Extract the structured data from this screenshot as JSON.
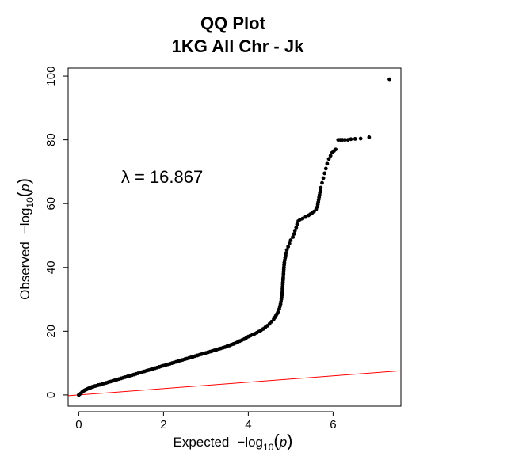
{
  "chart_data": {
    "type": "scatter",
    "title": "QQ Plot",
    "subtitle": "1KG All Chr - Jk",
    "xlabel": {
      "prefix": "Expected",
      "log_term": "−log",
      "base": "10",
      "arg_open": "(",
      "arg": "p",
      "arg_close": ")"
    },
    "ylabel": {
      "prefix": "Observed",
      "log_term": "−log",
      "base": "10",
      "arg_open": "(",
      "arg": "p",
      "arg_close": ")"
    },
    "xlim": [
      -0.25,
      7.6
    ],
    "ylim": [
      -3.5,
      102.5
    ],
    "x_ticks": [
      0,
      2,
      4,
      6
    ],
    "x_tick_labels": [
      "0",
      "2",
      "4",
      "6"
    ],
    "y_ticks": [
      0,
      20,
      40,
      60,
      80,
      100
    ],
    "y_tick_labels": [
      "0",
      "20",
      "40",
      "60",
      "80",
      "100"
    ],
    "annotation": "λ = 16.867",
    "annotation_at": [
      1.0,
      66.5
    ],
    "point_color": "#000000",
    "reference_line": {
      "color": "#ff0000",
      "x": [
        -0.25,
        7.6
      ],
      "y": [
        -0.25,
        7.6
      ]
    },
    "grid": false,
    "points": [
      [
        0.0,
        0.0
      ],
      [
        0.02,
        0.2
      ],
      [
        0.05,
        0.5
      ],
      [
        0.08,
        0.9
      ],
      [
        0.1,
        1.1
      ],
      [
        0.13,
        1.4
      ],
      [
        0.16,
        1.6
      ],
      [
        0.19,
        1.8
      ],
      [
        0.22,
        2.0
      ],
      [
        0.25,
        2.2
      ],
      [
        0.28,
        2.3
      ],
      [
        0.31,
        2.5
      ],
      [
        0.34,
        2.6
      ],
      [
        0.38,
        2.8
      ],
      [
        0.42,
        2.9
      ],
      [
        0.46,
        3.1
      ],
      [
        0.5,
        3.2
      ],
      [
        0.55,
        3.4
      ],
      [
        0.6,
        3.6
      ],
      [
        0.65,
        3.8
      ],
      [
        0.7,
        4.0
      ],
      [
        0.75,
        4.2
      ],
      [
        0.8,
        4.4
      ],
      [
        0.85,
        4.6
      ],
      [
        0.9,
        4.8
      ],
      [
        0.95,
        5.0
      ],
      [
        1.0,
        5.2
      ],
      [
        1.05,
        5.4
      ],
      [
        1.1,
        5.6
      ],
      [
        1.15,
        5.8
      ],
      [
        1.2,
        6.0
      ],
      [
        1.25,
        6.2
      ],
      [
        1.3,
        6.4
      ],
      [
        1.35,
        6.6
      ],
      [
        1.4,
        6.8
      ],
      [
        1.45,
        7.0
      ],
      [
        1.5,
        7.2
      ],
      [
        1.55,
        7.4
      ],
      [
        1.6,
        7.6
      ],
      [
        1.65,
        7.8
      ],
      [
        1.7,
        8.0
      ],
      [
        1.75,
        8.2
      ],
      [
        1.8,
        8.4
      ],
      [
        1.85,
        8.6
      ],
      [
        1.9,
        8.8
      ],
      [
        1.95,
        9.0
      ],
      [
        2.0,
        9.2
      ],
      [
        2.05,
        9.4
      ],
      [
        2.1,
        9.6
      ],
      [
        2.15,
        9.8
      ],
      [
        2.2,
        10.0
      ],
      [
        2.25,
        10.2
      ],
      [
        2.3,
        10.4
      ],
      [
        2.35,
        10.6
      ],
      [
        2.4,
        10.8
      ],
      [
        2.45,
        11.0
      ],
      [
        2.5,
        11.2
      ],
      [
        2.55,
        11.4
      ],
      [
        2.6,
        11.6
      ],
      [
        2.65,
        11.8
      ],
      [
        2.7,
        12.0
      ],
      [
        2.75,
        12.2
      ],
      [
        2.8,
        12.4
      ],
      [
        2.85,
        12.6
      ],
      [
        2.9,
        12.8
      ],
      [
        2.95,
        13.0
      ],
      [
        3.0,
        13.2
      ],
      [
        3.05,
        13.4
      ],
      [
        3.1,
        13.6
      ],
      [
        3.15,
        13.8
      ],
      [
        3.2,
        14.0
      ],
      [
        3.25,
        14.2
      ],
      [
        3.3,
        14.4
      ],
      [
        3.35,
        14.6
      ],
      [
        3.4,
        14.8
      ],
      [
        3.45,
        15.0
      ],
      [
        3.5,
        15.3
      ],
      [
        3.55,
        15.5
      ],
      [
        3.6,
        15.8
      ],
      [
        3.65,
        16.0
      ],
      [
        3.7,
        16.3
      ],
      [
        3.75,
        16.6
      ],
      [
        3.8,
        16.9
      ],
      [
        3.85,
        17.2
      ],
      [
        3.9,
        17.5
      ],
      [
        3.95,
        17.9
      ],
      [
        4.0,
        18.3
      ],
      [
        4.05,
        18.6
      ],
      [
        4.1,
        18.9
      ],
      [
        4.15,
        19.2
      ],
      [
        4.2,
        19.5
      ],
      [
        4.25,
        19.9
      ],
      [
        4.3,
        20.3
      ],
      [
        4.35,
        20.7
      ],
      [
        4.4,
        21.2
      ],
      [
        4.45,
        21.7
      ],
      [
        4.5,
        22.3
      ],
      [
        4.55,
        23.0
      ],
      [
        4.6,
        23.8
      ],
      [
        4.65,
        24.8
      ],
      [
        4.7,
        26.0
      ],
      [
        4.73,
        27.0
      ],
      [
        4.76,
        28.5
      ],
      [
        4.78,
        30.0
      ],
      [
        4.8,
        32.0
      ],
      [
        4.81,
        34.0
      ],
      [
        4.82,
        36.0
      ],
      [
        4.83,
        38.0
      ],
      [
        4.84,
        40.0
      ],
      [
        4.85,
        41.5
      ],
      [
        4.87,
        43.0
      ],
      [
        4.89,
        44.5
      ],
      [
        4.91,
        45.5
      ],
      [
        4.94,
        46.5
      ],
      [
        4.97,
        47.5
      ],
      [
        5.0,
        48.5
      ],
      [
        5.05,
        49.5
      ],
      [
        5.08,
        50.5
      ],
      [
        5.1,
        51.5
      ],
      [
        5.13,
        52.5
      ],
      [
        5.15,
        53.5
      ],
      [
        5.18,
        54.5
      ],
      [
        5.22,
        55.0
      ],
      [
        5.28,
        55.3
      ],
      [
        5.35,
        55.8
      ],
      [
        5.42,
        56.3
      ],
      [
        5.5,
        57.0
      ],
      [
        5.55,
        57.5
      ],
      [
        5.6,
        58.2
      ],
      [
        5.63,
        59.0
      ],
      [
        5.65,
        60.5
      ],
      [
        5.67,
        62.0
      ],
      [
        5.69,
        63.5
      ],
      [
        5.71,
        65.0
      ],
      [
        5.74,
        66.5
      ],
      [
        5.77,
        68.0
      ],
      [
        5.8,
        69.5
      ],
      [
        5.83,
        71.0
      ],
      [
        5.86,
        72.5
      ],
      [
        5.9,
        74.0
      ],
      [
        5.94,
        75.0
      ],
      [
        5.98,
        76.0
      ],
      [
        6.02,
        76.5
      ],
      [
        6.06,
        77.0
      ],
      [
        6.12,
        80.0
      ],
      [
        6.17,
        80.0
      ],
      [
        6.22,
        80.0
      ],
      [
        6.28,
        80.0
      ],
      [
        6.35,
        80.0
      ],
      [
        6.42,
        80.2
      ],
      [
        6.52,
        80.3
      ],
      [
        6.65,
        80.4
      ],
      [
        6.85,
        80.8
      ],
      [
        7.33,
        99.0
      ]
    ]
  }
}
